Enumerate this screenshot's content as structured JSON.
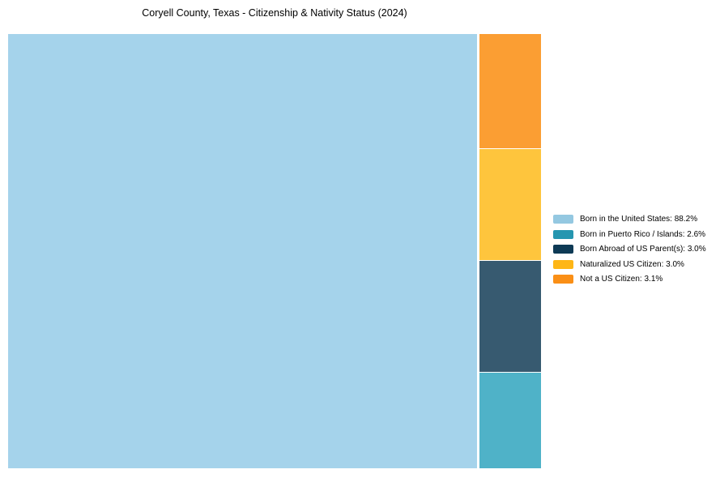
{
  "chart_data": {
    "type": "treemap",
    "title": "Coryell County, Texas - Citizenship & Nativity Status (2024)",
    "unit": "%",
    "segments": [
      {
        "label": "Born in the United States",
        "value": 88.2,
        "legend_text": "Born in the United States: 88.2%",
        "legend_color": "#94C8E1",
        "tile_color": "#A5D3EB"
      },
      {
        "label": "Born in Puerto Rico / Islands",
        "value": 2.6,
        "legend_text": "Born in Puerto Rico / Islands: 2.6%",
        "legend_color": "#2596B0",
        "tile_color": "#4FB2C8"
      },
      {
        "label": "Born Abroad of US Parent(s)",
        "value": 3.0,
        "legend_text": "Born Abroad of US Parent(s): 3.0%",
        "legend_color": "#0E3A55",
        "tile_color": "#375A70"
      },
      {
        "label": "Naturalized US Citizen",
        "value": 3.0,
        "legend_text": "Naturalized US Citizen: 3.0%",
        "legend_color": "#FEB616",
        "tile_color": "#FEC53D"
      },
      {
        "label": "Not a US Citizen",
        "value": 3.1,
        "legend_text": "Not a US Citizen: 3.1%",
        "legend_color": "#FA8F16",
        "tile_color": "#FB9E33"
      }
    ],
    "layout": {
      "legend_position": "right",
      "grid": false,
      "main_tile_label": "Born in the United States",
      "column_order_top_to_bottom": [
        "Not a US Citizen",
        "Naturalized US Citizen",
        "Born Abroad of US Parent(s)",
        "Born in Puerto Rico / Islands"
      ]
    }
  }
}
